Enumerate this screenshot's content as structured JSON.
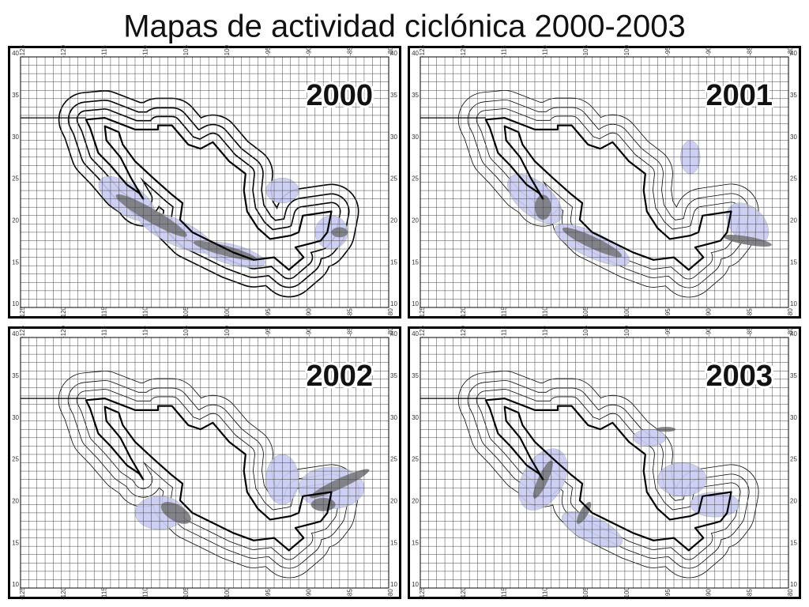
{
  "title": "Mapas de actividad ciclónica 2000-2003",
  "panels": [
    {
      "year": "2000"
    },
    {
      "year": "2001"
    },
    {
      "year": "2002"
    },
    {
      "year": "2003"
    }
  ],
  "longitude_labels": [
    "-125",
    "-120",
    "-115",
    "-110",
    "-105",
    "-100",
    "-95",
    "-90",
    "-85",
    "-80"
  ],
  "latitude_labels": [
    "40",
    "35",
    "30",
    "25",
    "20",
    "15",
    "10"
  ]
}
